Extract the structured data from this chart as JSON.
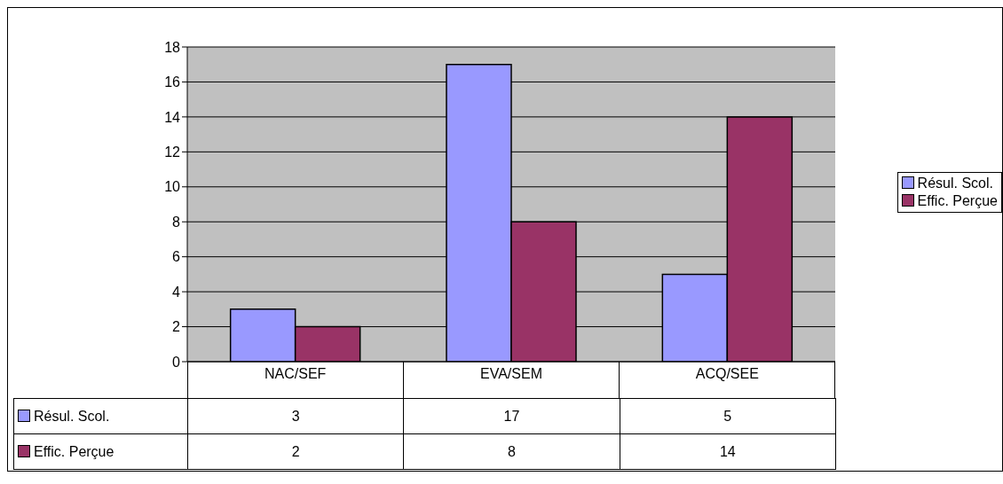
{
  "chart_data": {
    "type": "bar",
    "categories": [
      "NAC/SEF",
      "EVA/SEM",
      "ACQ/SEE"
    ],
    "series": [
      {
        "name": "Résul. Scol.",
        "color": "#9999ff",
        "values": [
          3,
          17,
          5
        ]
      },
      {
        "name": "Effic. Perçue",
        "color": "#993366",
        "values": [
          2,
          8,
          14
        ]
      }
    ],
    "ylim": [
      0,
      18
    ],
    "yticks": [
      0,
      2,
      4,
      6,
      8,
      10,
      12,
      14,
      16,
      18
    ],
    "grid": "y",
    "legend": "right",
    "data_labels": true
  }
}
